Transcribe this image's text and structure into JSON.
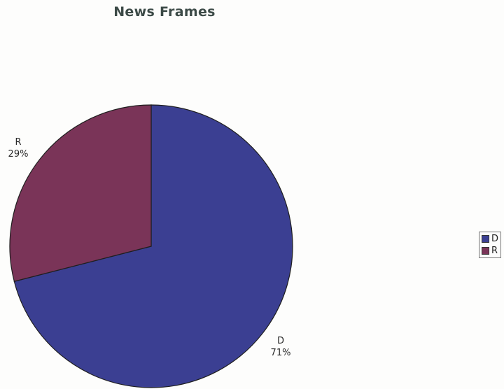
{
  "chart_data": {
    "type": "pie",
    "title": "News Frames",
    "slices": [
      {
        "label": "D",
        "value": 71,
        "value_label": "71%",
        "color": "#3b3f92"
      },
      {
        "label": "R",
        "value": 29,
        "value_label": "29%",
        "color": "#7a3458"
      }
    ],
    "start_angle_deg": 0,
    "direction": "clockwise",
    "legend": {
      "placement": "right",
      "entries": [
        {
          "label": "D",
          "color": "#3b3f92"
        },
        {
          "label": "R",
          "color": "#7a3458"
        }
      ]
    }
  }
}
